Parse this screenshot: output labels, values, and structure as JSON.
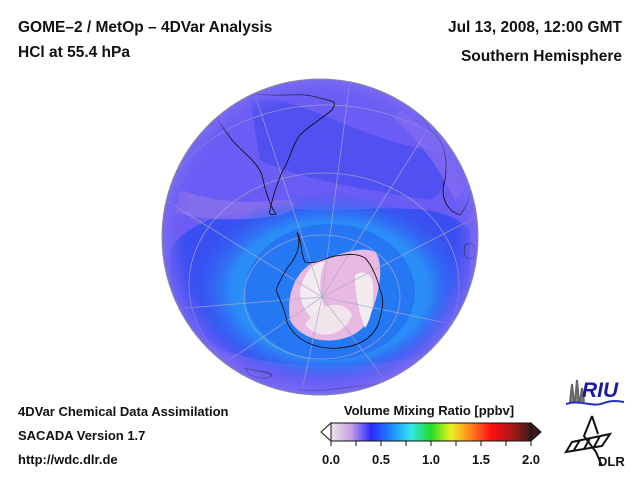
{
  "header": {
    "title": "GOME–2 / MetOp – 4DVar Analysis",
    "subtitle": "HCl at 55.4 hPa",
    "date": "Jul 13, 2008, 12:00 GMT",
    "region": "Southern Hemisphere"
  },
  "footer": {
    "line1": "4DVar Chemical Data Assimilation",
    "line2": "SACADA Version 1.7",
    "line3": "http://wdc.dlr.de"
  },
  "colorbar": {
    "title": "Volume Mixing Ratio [ppbv]",
    "ticks": [
      "0.0",
      "0.5",
      "1.0",
      "1.5",
      "2.0"
    ],
    "range": [
      0.0,
      2.0
    ],
    "colors": [
      "#f2e6ec",
      "#c8a0e8",
      "#2a2aff",
      "#1e88ff",
      "#33e6ee",
      "#22dd22",
      "#f0f020",
      "#ff8020",
      "#ff1010",
      "#b01818",
      "#3a1a1a"
    ]
  },
  "map": {
    "projection": "orthographic",
    "hemisphere": "south",
    "field": "HCl volume mixing ratio",
    "colors": {
      "background_low": "#6b5cf5",
      "mid_band": "#2f5cf0",
      "vortex_edge": "#1f9cf5",
      "vortex_core": "#f2e8ee",
      "vortex_pink": "#e7b9e3",
      "coastline": "#111111",
      "grid": "#a9a9c8"
    }
  },
  "logos": {
    "riu": "RIU",
    "dlr": "DLR"
  }
}
